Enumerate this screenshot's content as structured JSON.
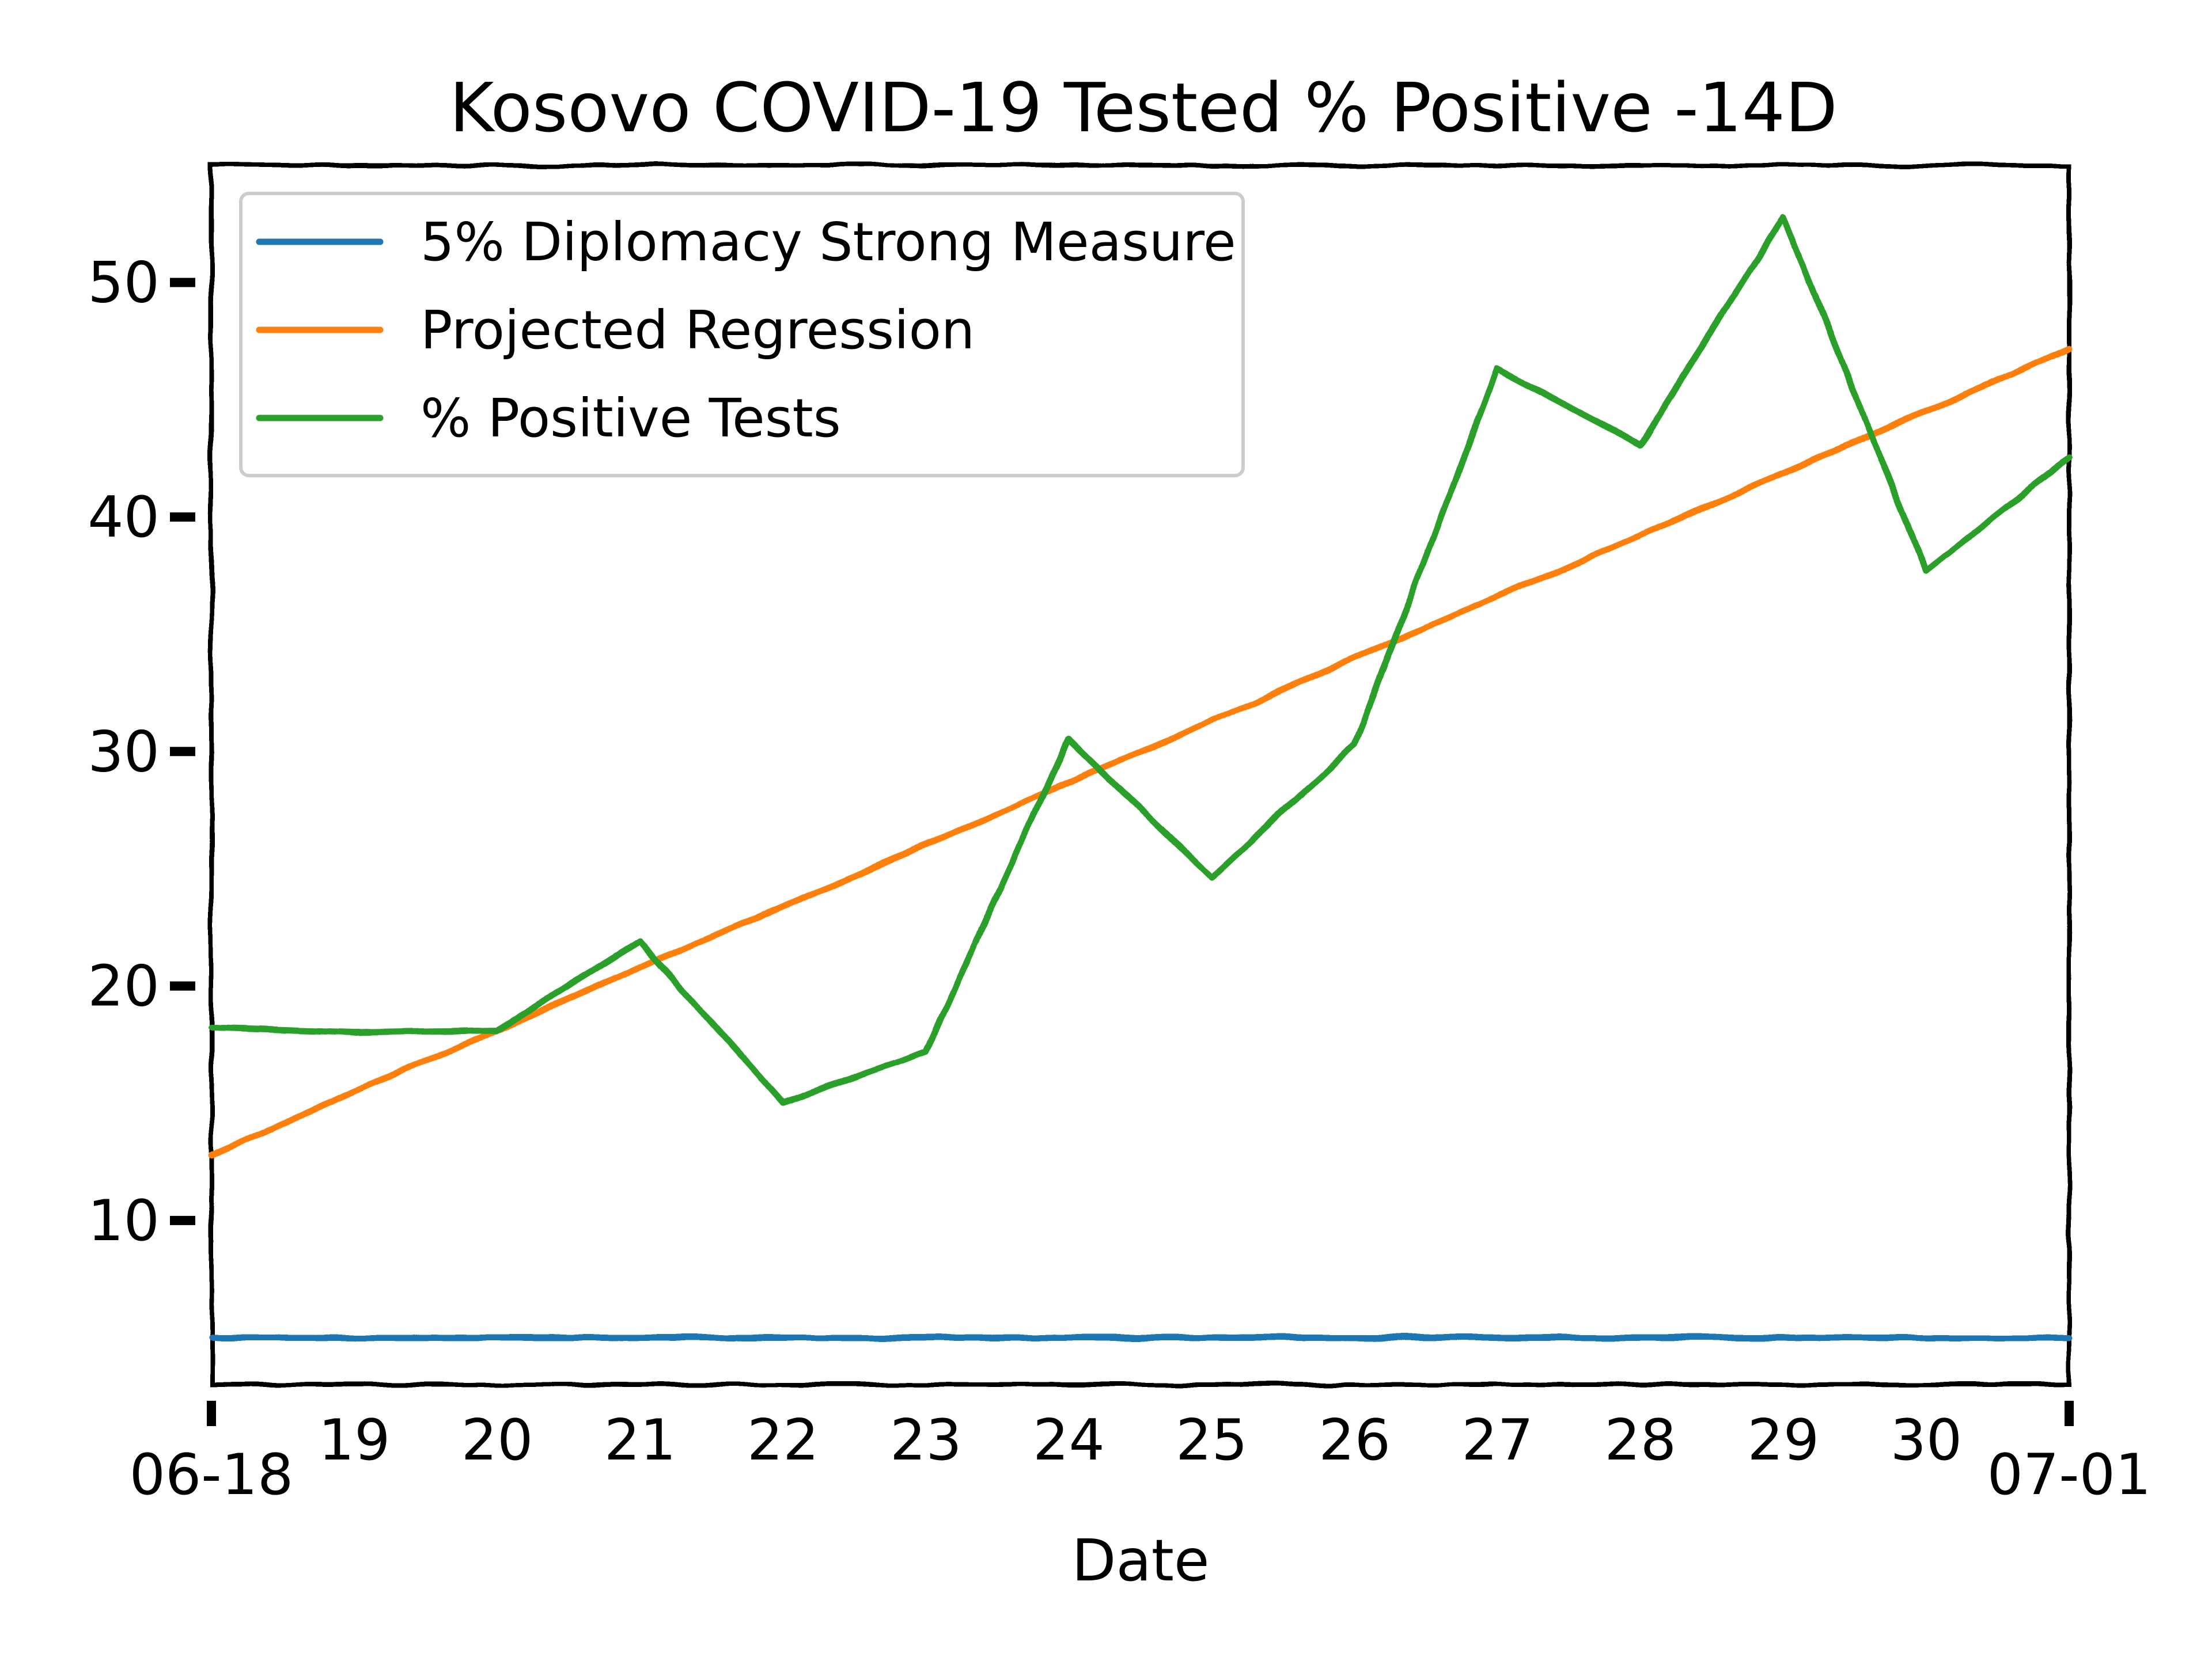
{
  "chart_data": {
    "type": "line",
    "title": "Kosovo COVID-19 Tested % Positive -14D",
    "xlabel": "Date",
    "ylabel": "",
    "x": [
      "06-18",
      "19",
      "20",
      "21",
      "22",
      "23",
      "24",
      "25",
      "26",
      "27",
      "28",
      "29",
      "30",
      "07-01"
    ],
    "x_tick_labels": [
      "06-18",
      "19",
      "20",
      "21",
      "22",
      "23",
      "24",
      "25",
      "26",
      "27",
      "28",
      "29",
      "30",
      "07-01"
    ],
    "y_ticks": [
      "10",
      "20",
      "30",
      "40",
      "50"
    ],
    "ylim": [
      3,
      55
    ],
    "grid": false,
    "legend_position": "upper-left",
    "series": [
      {
        "name": "5% Diplomacy Strong Measure",
        "color": "#1f77b4",
        "values": [
          5,
          5,
          5,
          5,
          5,
          5,
          5,
          5,
          5,
          5,
          5,
          5,
          5,
          5
        ]
      },
      {
        "name": "Projected Regression",
        "color": "#ff7f0e",
        "values": [
          12.8,
          15.5,
          18.1,
          20.8,
          23.4,
          26.0,
          28.7,
          31.3,
          34.0,
          36.6,
          39.2,
          41.9,
          44.5,
          47.2
        ]
      },
      {
        "name": "% Positive Tests",
        "color": "#2ca02c",
        "values": [
          18.2,
          18.0,
          18.1,
          21.9,
          15.0,
          17.2,
          30.5,
          24.6,
          30.3,
          46.3,
          43.1,
          52.8,
          37.7,
          42.5
        ]
      }
    ]
  }
}
